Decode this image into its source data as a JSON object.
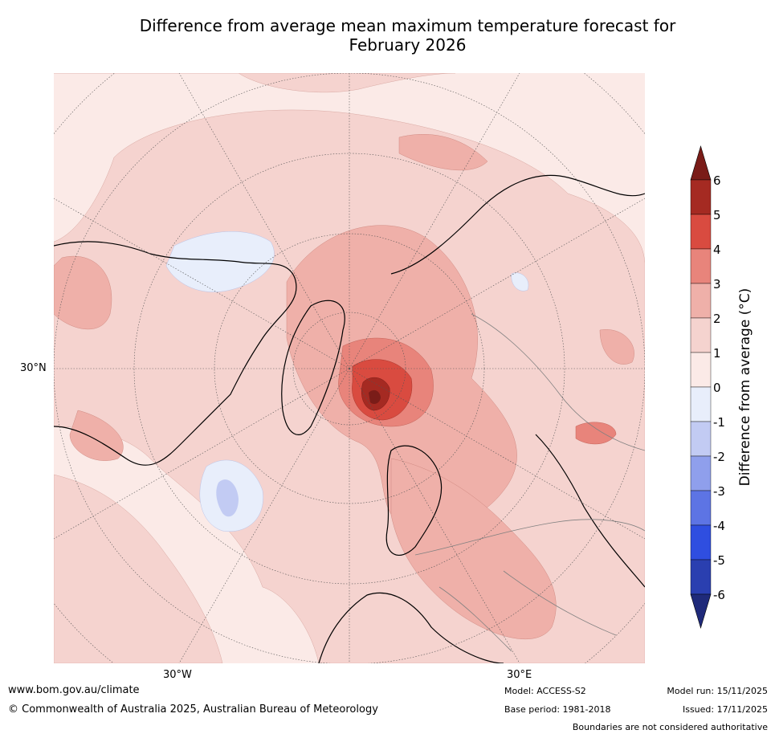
{
  "title": {
    "line1": "Difference from average mean maximum temperature forecast for",
    "line2": "February 2026"
  },
  "map": {
    "tick_labels": {
      "lat_30n": "30°N",
      "lon_30w": "30°W",
      "lon_30e": "30°E"
    },
    "colors": {
      "ocean_base": "#fbeae7",
      "land_outline": "#000000",
      "border": "#808080"
    }
  },
  "colorbar": {
    "label": "Difference from average (°C)",
    "levels": [
      "6",
      "5",
      "4",
      "3",
      "2",
      "1",
      "0",
      "-1",
      "-2",
      "-3",
      "-4",
      "-5",
      "-6"
    ],
    "colors": [
      "#a52a22",
      "#d94b40",
      "#e8847b",
      "#efb0a9",
      "#f5d3cf",
      "#fbeae7",
      "#e8eefb",
      "#c2cbf3",
      "#8f9fec",
      "#5d74e4",
      "#2f4ee0",
      "#2a3fb0"
    ],
    "over_color": "#7a1c18",
    "under_color": "#1f2a7a"
  },
  "footer": {
    "url": "www.bom.gov.au/climate",
    "copyright": "© Commonwealth of Australia 2025, Australian Bureau of Meteorology",
    "model": "Model: ACCESS-S2",
    "model_run": "Model run: 15/11/2025",
    "base_period": "Base period: 1981-2018",
    "issued": "Issued: 17/11/2025",
    "disclaimer": "Boundaries are not considered authoritative"
  }
}
